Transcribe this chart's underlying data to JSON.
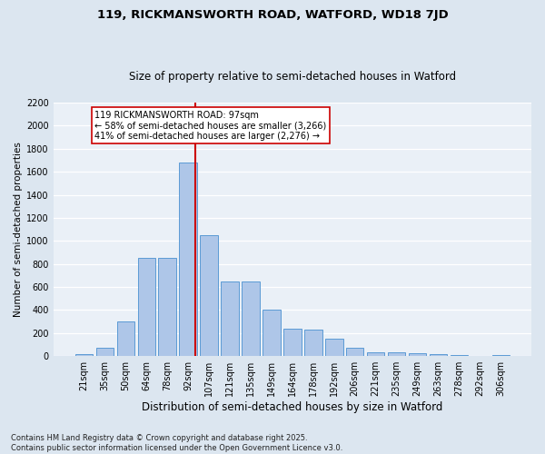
{
  "title1": "119, RICKMANSWORTH ROAD, WATFORD, WD18 7JD",
  "title2": "Size of property relative to semi-detached houses in Watford",
  "xlabel": "Distribution of semi-detached houses by size in Watford",
  "ylabel": "Number of semi-detached properties",
  "categories": [
    "21sqm",
    "35sqm",
    "50sqm",
    "64sqm",
    "78sqm",
    "92sqm",
    "107sqm",
    "121sqm",
    "135sqm",
    "149sqm",
    "164sqm",
    "178sqm",
    "192sqm",
    "206sqm",
    "221sqm",
    "235sqm",
    "249sqm",
    "263sqm",
    "278sqm",
    "292sqm",
    "306sqm"
  ],
  "values": [
    20,
    75,
    300,
    855,
    855,
    1680,
    1050,
    650,
    650,
    400,
    240,
    230,
    155,
    75,
    35,
    30,
    25,
    18,
    8,
    3,
    10
  ],
  "bar_color": "#aec6e8",
  "bar_edge_color": "#5b9bd5",
  "vline_color": "#cc0000",
  "annotation_text": "119 RICKMANSWORTH ROAD: 97sqm\n← 58% of semi-detached houses are smaller (3,266)\n41% of semi-detached houses are larger (2,276) →",
  "annotation_box_color": "#ffffff",
  "annotation_box_edge": "#cc0000",
  "ylim": [
    0,
    2200
  ],
  "yticks": [
    0,
    200,
    400,
    600,
    800,
    1000,
    1200,
    1400,
    1600,
    1800,
    2000,
    2200
  ],
  "footnote": "Contains HM Land Registry data © Crown copyright and database right 2025.\nContains public sector information licensed under the Open Government Licence v3.0.",
  "bg_color": "#dce6f0",
  "plot_bg_color": "#eaf0f7",
  "grid_color": "#ffffff",
  "title1_fontsize": 9.5,
  "title2_fontsize": 8.5,
  "xlabel_fontsize": 8.5,
  "ylabel_fontsize": 7.5,
  "tick_fontsize": 7,
  "footnote_fontsize": 6,
  "annotation_fontsize": 7
}
